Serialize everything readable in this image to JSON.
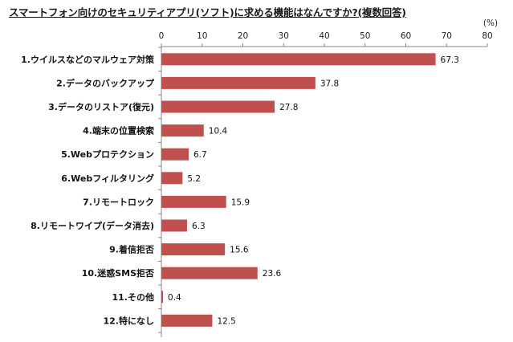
{
  "title": "スマートフォン向けのセキュリティアプリ(ソフト)に求める機能はなんですか?(複数回答)",
  "chart_data": {
    "type": "bar",
    "orientation": "horizontal",
    "title": "スマートフォン向けのセキュリティアプリ(ソフト)に求める機能はなんですか?(複数回答)",
    "unit": "(%)",
    "xlim": [
      0,
      80
    ],
    "ticks": [
      "0",
      "10",
      "20",
      "30",
      "40",
      "50",
      "60",
      "70",
      "80"
    ],
    "categories": [
      "1.ウイルスなどのマルウェア対策",
      "2.データのバックアップ",
      "3.データのリストア(復元)",
      "4.端末の位置検索",
      "5.Webプロテクション",
      "6.Webフィルタリング",
      "7.リモートロック",
      "8.リモートワイプ(データ消去)",
      "9.着信拒否",
      "10.迷惑SMS拒否",
      "11.その他",
      "12.特になし"
    ],
    "values": [
      67.3,
      37.8,
      27.8,
      10.4,
      6.7,
      5.2,
      15.9,
      6.3,
      15.6,
      23.6,
      0.4,
      12.5
    ],
    "value_labels": [
      "67.3",
      "37.8",
      "27.8",
      "10.4",
      "6.7",
      "5.2",
      "15.9",
      "6.3",
      "15.6",
      "23.6",
      "0.4",
      "12.5"
    ],
    "bar_color": "#c0504d",
    "grid": false,
    "legend": "none"
  }
}
